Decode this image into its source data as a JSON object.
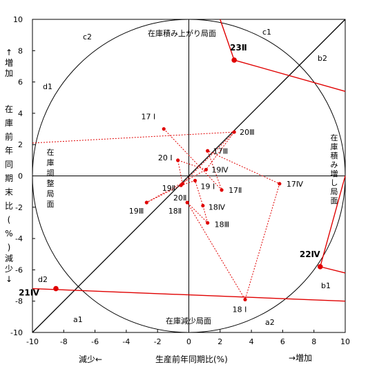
{
  "chart_data": {
    "type": "scatter",
    "xlim": [
      -10,
      10
    ],
    "ylim": [
      -10,
      10
    ],
    "x_ticks": [
      "-10",
      "-8",
      "-6",
      "-4",
      "-2",
      "0",
      "2",
      "4",
      "6",
      "8",
      "10"
    ],
    "y_ticks": [
      "10",
      "8",
      "6",
      "4",
      "2",
      "0",
      "-2",
      "-4",
      "-6",
      "-8",
      "-10"
    ],
    "xlabel": "生産前年同期比(%)",
    "x_left_note": "減少←",
    "x_right_note": "→増加",
    "ylabel": "在庫前年同期末比(%)",
    "y_top_note": "↑増加",
    "y_bottom_note": "減少↓",
    "grid": false,
    "circle": {
      "cx": 0,
      "cy": 0,
      "r": 10
    },
    "diagonal": [
      [
        -10,
        -10
      ],
      [
        10,
        10
      ]
    ],
    "zone_labels": [
      {
        "text": "在庫積み上がり局面"
      },
      {
        "text": "在庫積み増し局面"
      },
      {
        "text": "在庫減少局面"
      },
      {
        "text": "在庫調整局面"
      }
    ],
    "sector_labels": [
      "c1",
      "c2",
      "b2",
      "d1",
      "d2",
      "a1",
      "a2",
      "b1"
    ],
    "series_thin": {
      "points": [
        {
          "label": "17 I",
          "x": -1.6,
          "y": 3.0
        },
        {
          "label": "17Ⅱ",
          "x": 2.1,
          "y": -0.9
        },
        {
          "label": "17Ⅲ",
          "x": 1.2,
          "y": 1.6
        },
        {
          "label": "17Ⅳ",
          "x": 5.8,
          "y": -0.5
        },
        {
          "label": "18 I",
          "x": 3.6,
          "y": -7.9
        },
        {
          "label": "18Ⅱ",
          "x": -0.1,
          "y": -1.7
        },
        {
          "label": "18Ⅲ",
          "x": 1.2,
          "y": -3.0
        },
        {
          "label": "18Ⅳ",
          "x": 0.9,
          "y": -1.9
        },
        {
          "label": "19 I",
          "x": 0.4,
          "y": -0.3
        },
        {
          "label": "19Ⅱ",
          "x": -0.5,
          "y": -0.6
        },
        {
          "label": "19Ⅲ",
          "x": -2.7,
          "y": -1.7
        },
        {
          "label": "19Ⅳ",
          "x": 1.1,
          "y": 0.4
        },
        {
          "label": "20 I",
          "x": -0.7,
          "y": 1.0
        },
        {
          "label": "20Ⅱ",
          "x": -0.4,
          "y": -0.5
        },
        {
          "label": "20Ⅲ",
          "x": 2.9,
          "y": 2.8
        }
      ]
    },
    "series_bold": {
      "points": [
        {
          "label": "21Ⅳ",
          "x": -8.5,
          "y": -7.2
        },
        {
          "label": "22Ⅳ",
          "x": 8.4,
          "y": -5.8
        },
        {
          "label": "23Ⅱ",
          "x": 2.9,
          "y": 7.4
        }
      ]
    },
    "line_color": "#e00000",
    "line_entries": [
      {
        "y": 7.4
      },
      {
        "y": 2.1
      },
      {
        "y": -7.2
      },
      {
        "y": -6.2
      }
    ],
    "line_exits": [
      {
        "x": 2.0,
        "y": 10
      },
      {
        "x": 10,
        "y": 5.4
      },
      {
        "x": 10,
        "y": -8.0
      },
      {
        "x": 10,
        "y": 0
      }
    ]
  }
}
